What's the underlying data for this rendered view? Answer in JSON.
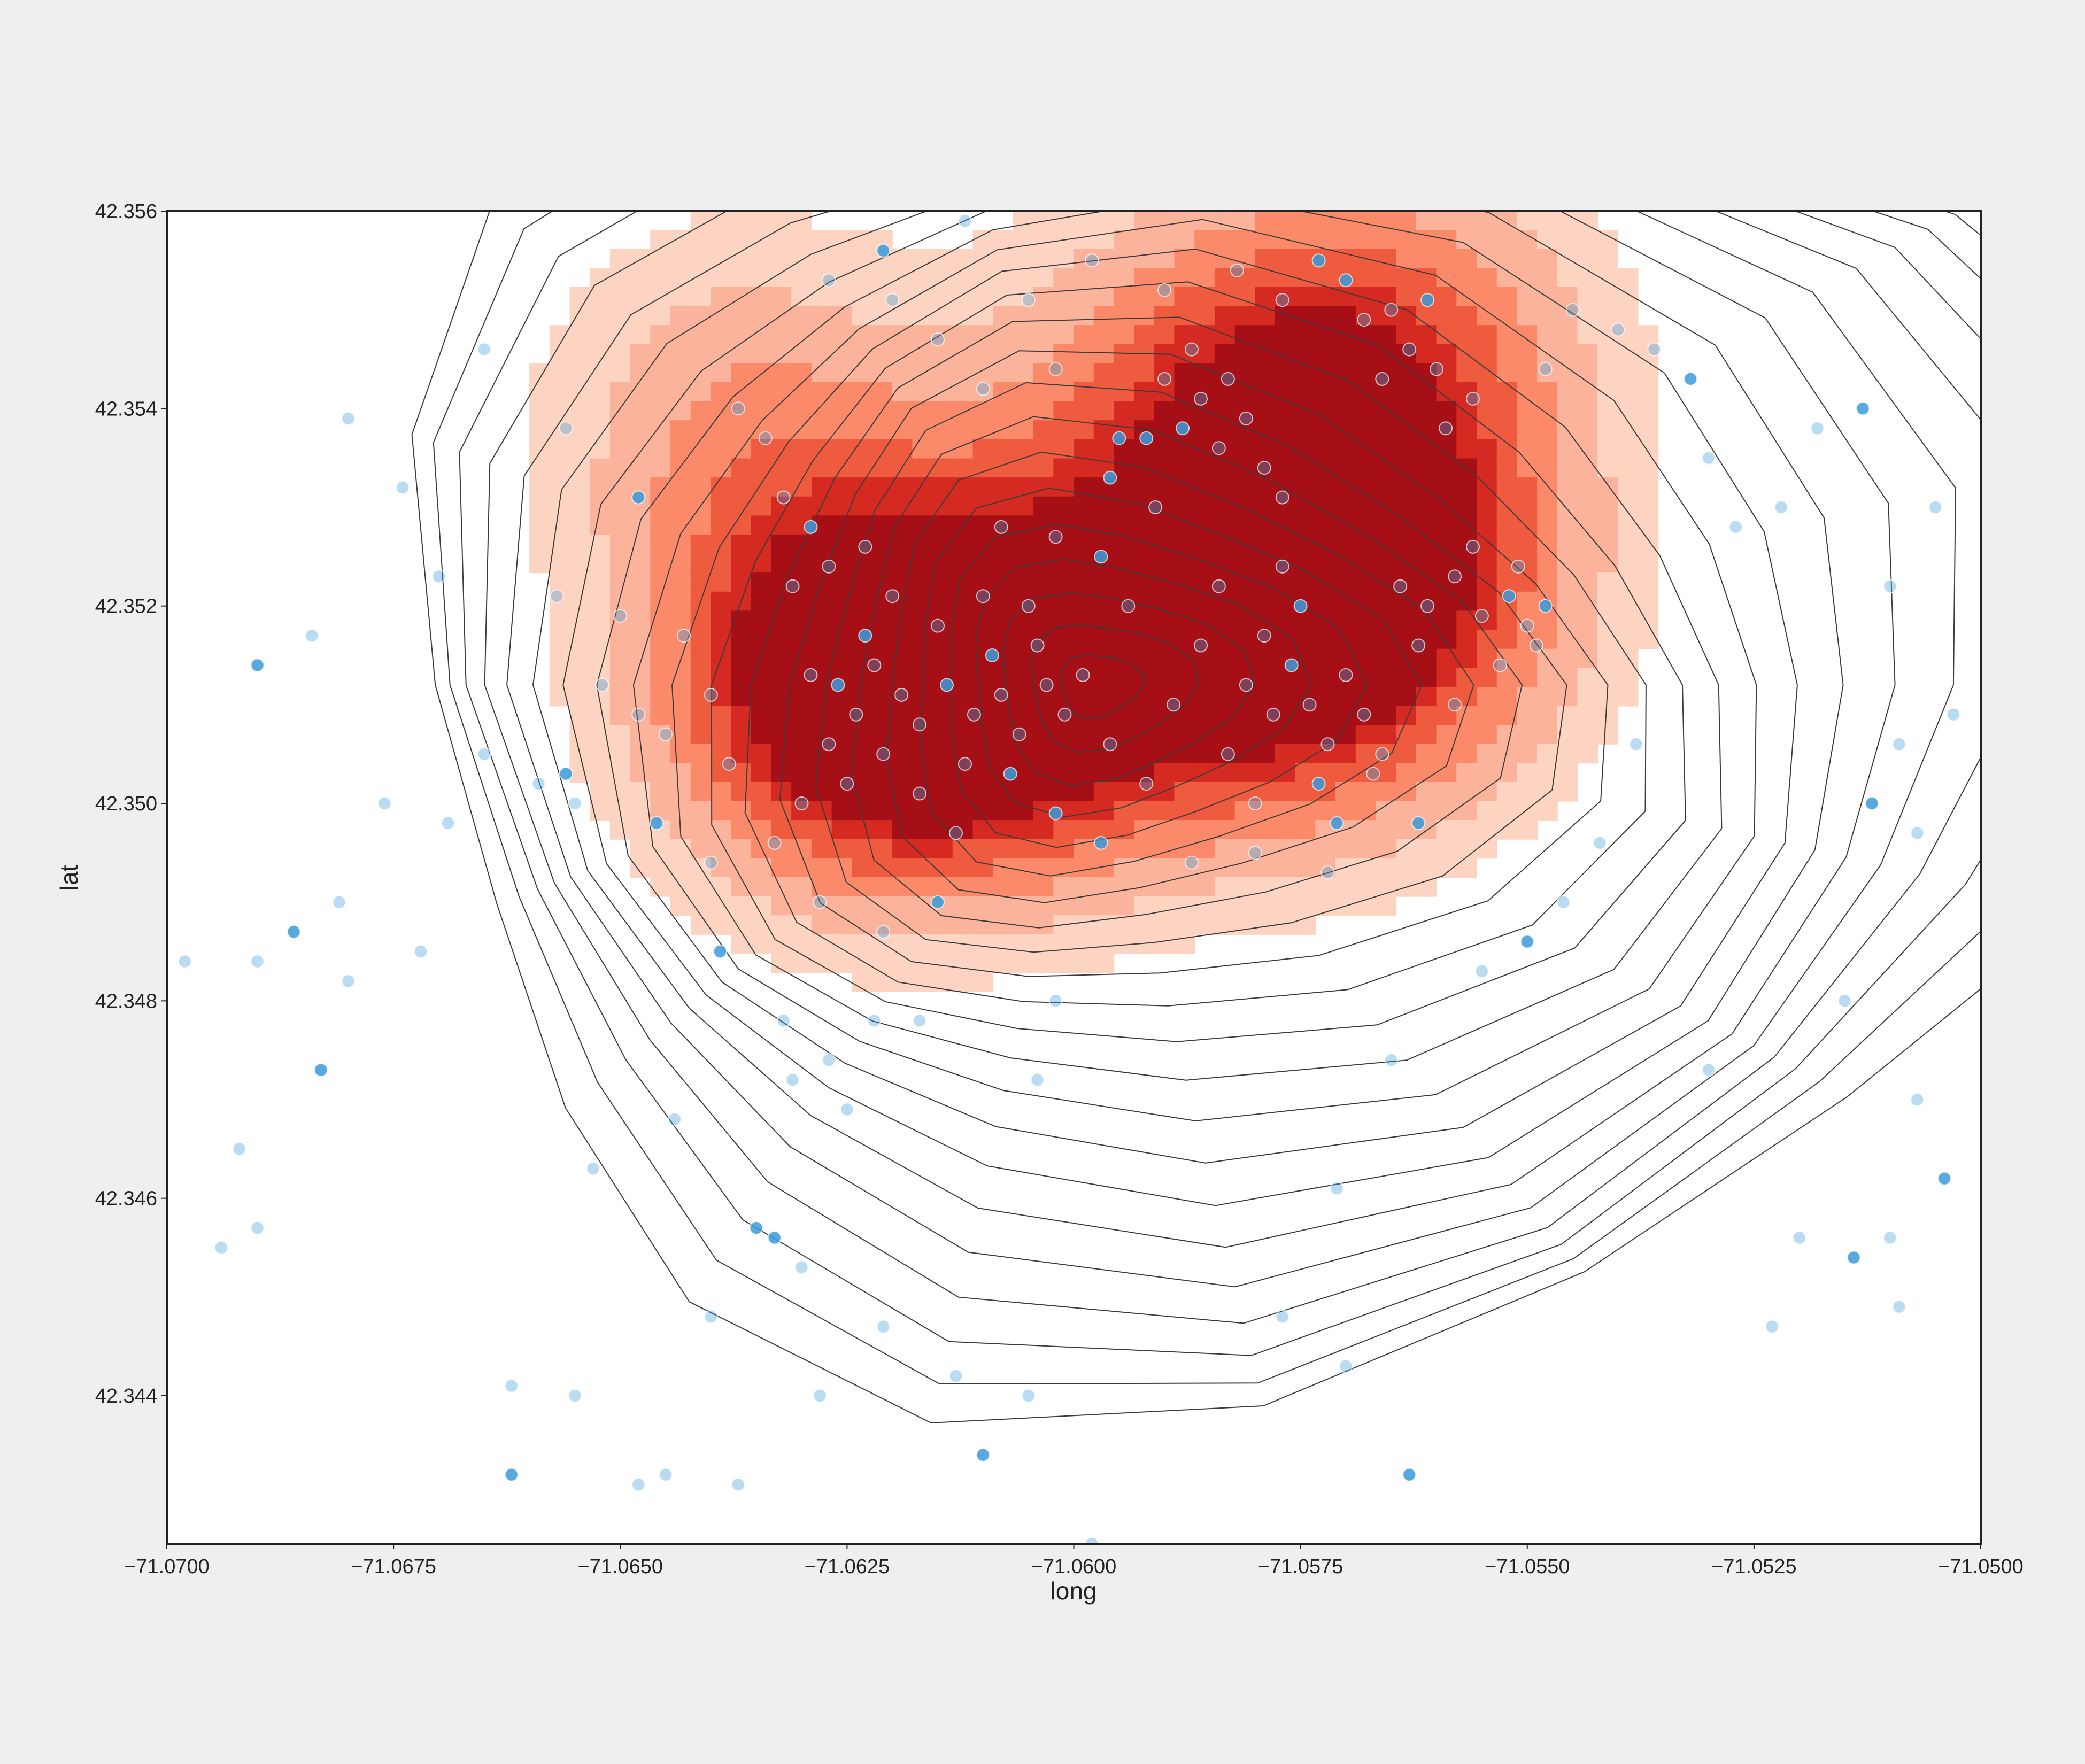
{
  "chart_data": {
    "type": "scatter",
    "title": "",
    "xlabel": "long",
    "ylabel": "lat",
    "xlim": [
      -71.07,
      -71.05
    ],
    "ylim": [
      42.3425,
      42.356
    ],
    "xticks": [
      -71.07,
      -71.0675,
      -71.065,
      -71.0625,
      -71.06,
      -71.0575,
      -71.055,
      -71.0525,
      -71.05
    ],
    "xtick_labels": [
      "−71.0700",
      "−71.0675",
      "−71.0650",
      "−71.0625",
      "−71.0600",
      "−71.0575",
      "−71.0550",
      "−71.0525",
      "−71.0500"
    ],
    "yticks": [
      42.344,
      42.346,
      42.348,
      42.35,
      42.352,
      42.354,
      42.356
    ],
    "ytick_labels": [
      "42.344",
      "42.346",
      "42.348",
      "42.350",
      "42.352",
      "42.354",
      "42.356"
    ],
    "grid": false,
    "layers": [
      "filled density contours (Reds)",
      "line density contours (black)",
      "scatter points (blue, semi-transparent)"
    ],
    "colors": {
      "points": "#3a9ad9",
      "point_edge": "#ffffff",
      "contour_line": "#3b3b3b",
      "density_fill_levels": [
        "#fdd4c2",
        "#fcb39b",
        "#fb8a6a",
        "#ef5b3f",
        "#d42a21",
        "#a50f15"
      ]
    },
    "density_centers": [
      {
        "x": -71.0625,
        "y": 42.3511,
        "amplitude": 1.0
      },
      {
        "x": -71.0607,
        "y": 42.3511,
        "amplitude": 0.75
      },
      {
        "x": -71.0577,
        "y": 42.3514,
        "amplitude": 0.7
      },
      {
        "x": -71.0563,
        "y": 42.3522,
        "amplitude": 0.6
      },
      {
        "x": -71.0585,
        "y": 42.3541,
        "amplitude": 0.65
      },
      {
        "x": -71.0563,
        "y": 42.3548,
        "amplitude": 0.55
      },
      {
        "x": -71.0637,
        "y": 42.354,
        "amplitude": 0.5
      }
    ],
    "points": [
      [
        -71.0626,
        42.3512
      ],
      [
        -71.0624,
        42.3509
      ],
      [
        -71.0622,
        42.3514
      ],
      [
        -71.0627,
        42.3506
      ],
      [
        -71.0619,
        42.3511
      ],
      [
        -71.0623,
        42.3517
      ],
      [
        -71.0629,
        42.3513
      ],
      [
        -71.0621,
        42.3505
      ],
      [
        -71.0617,
        42.3508
      ],
      [
        -71.0625,
        42.3502
      ],
      [
        -71.0614,
        42.3512
      ],
      [
        -71.0611,
        42.3509
      ],
      [
        -71.0608,
        42.3511
      ],
      [
        -71.0606,
        42.3507
      ],
      [
        -71.0603,
        42.3512
      ],
      [
        -71.0609,
        42.3515
      ],
      [
        -71.0612,
        42.3504
      ],
      [
        -71.0604,
        42.3516
      ],
      [
        -71.0615,
        42.3518
      ],
      [
        -71.0601,
        42.3509
      ],
      [
        -71.0607,
        42.3503
      ],
      [
        -71.0599,
        42.3513
      ],
      [
        -71.0605,
        42.352
      ],
      [
        -71.061,
        42.3521
      ],
      [
        -71.0617,
        42.3501
      ],
      [
        -71.0602,
        42.3499
      ],
      [
        -71.0596,
        42.3506
      ],
      [
        -71.0613,
        42.3497
      ],
      [
        -71.0581,
        42.3512
      ],
      [
        -71.0578,
        42.3509
      ],
      [
        -71.0576,
        42.3514
      ],
      [
        -71.0574,
        42.351
      ],
      [
        -71.0579,
        42.3517
      ],
      [
        -71.0572,
        42.3506
      ],
      [
        -71.0583,
        42.3505
      ],
      [
        -71.0575,
        42.352
      ],
      [
        -71.057,
        42.3513
      ],
      [
        -71.0586,
        42.3516
      ],
      [
        -71.0568,
        42.3509
      ],
      [
        -71.058,
        42.35
      ],
      [
        -71.0573,
        42.3502
      ],
      [
        -71.0584,
        42.3522
      ],
      [
        -71.0567,
        42.3503
      ],
      [
        -71.0589,
        42.351
      ],
      [
        -71.0577,
        42.3524
      ],
      [
        -71.0571,
        42.3498
      ],
      [
        -71.0564,
        42.3522
      ],
      [
        -71.0561,
        42.352
      ],
      [
        -71.0558,
        42.3523
      ],
      [
        -71.0555,
        42.3519
      ],
      [
        -71.0552,
        42.3521
      ],
      [
        -71.055,
        42.3518
      ],
      [
        -71.0551,
        42.3524
      ],
      [
        -71.0556,
        42.3526
      ],
      [
        -71.0562,
        42.3516
      ],
      [
        -71.0548,
        42.352
      ],
      [
        -71.0549,
        42.3516
      ],
      [
        -71.0553,
        42.3514
      ],
      [
        -71.0586,
        42.3541
      ],
      [
        -71.0583,
        42.3543
      ],
      [
        -71.0588,
        42.3538
      ],
      [
        -71.0581,
        42.3539
      ],
      [
        -71.059,
        42.3543
      ],
      [
        -71.0584,
        42.3536
      ],
      [
        -71.0579,
        42.3534
      ],
      [
        -71.0592,
        42.3537
      ],
      [
        -71.0587,
        42.3546
      ],
      [
        -71.0577,
        42.3531
      ],
      [
        -71.0565,
        42.355
      ],
      [
        -71.0563,
        42.3546
      ],
      [
        -71.0561,
        42.3551
      ],
      [
        -71.0568,
        42.3549
      ],
      [
        -71.056,
        42.3544
      ],
      [
        -71.0566,
        42.3543
      ],
      [
        -71.0559,
        42.3538
      ],
      [
        -71.057,
        42.3553
      ],
      [
        -71.0556,
        42.3541
      ],
      [
        -71.0637,
        42.354
      ],
      [
        -71.0634,
        42.3537
      ],
      [
        -71.0632,
        42.3531
      ],
      [
        -71.0629,
        42.3528
      ],
      [
        -71.0627,
        42.3524
      ],
      [
        -71.0623,
        42.3526
      ],
      [
        -71.062,
        42.3521
      ],
      [
        -71.0631,
        42.3522
      ],
      [
        -71.0597,
        42.3525
      ],
      [
        -71.0602,
        42.3527
      ],
      [
        -71.0594,
        42.352
      ],
      [
        -71.0608,
        42.3528
      ],
      [
        -71.0591,
        42.353
      ],
      [
        -71.0596,
        42.3533
      ],
      [
        -71.064,
        42.3511
      ],
      [
        -71.0645,
        42.3507
      ],
      [
        -71.0648,
        42.3509
      ],
      [
        -71.0652,
        42.3512
      ],
      [
        -71.0656,
        42.3503
      ],
      [
        -71.0659,
        42.3502
      ],
      [
        -71.0655,
        42.35
      ],
      [
        -71.0643,
        42.3517
      ],
      [
        -71.0638,
        42.3504
      ],
      [
        -71.0646,
        42.3498
      ],
      [
        -71.0633,
        42.3496
      ],
      [
        -71.063,
        42.35
      ],
      [
        -71.0628,
        42.349
      ],
      [
        -71.0621,
        42.3487
      ],
      [
        -71.0615,
        42.349
      ],
      [
        -71.064,
        42.3494
      ],
      [
        -71.0657,
        42.3521
      ],
      [
        -71.065,
        42.3519
      ],
      [
        -71.0592,
        42.3502
      ],
      [
        -71.0597,
        42.3496
      ],
      [
        -71.0587,
        42.3494
      ],
      [
        -71.058,
        42.3495
      ],
      [
        -71.0572,
        42.3493
      ],
      [
        -71.0566,
        42.3505
      ],
      [
        -71.0562,
        42.3498
      ],
      [
        -71.0558,
        42.351
      ],
      [
        -71.061,
        42.3542
      ],
      [
        -71.0615,
        42.3547
      ],
      [
        -71.0602,
        42.3544
      ],
      [
        -71.0595,
        42.3537
      ],
      [
        -71.062,
        42.3551
      ],
      [
        -71.0627,
        42.3553
      ],
      [
        -71.0605,
        42.3551
      ],
      [
        -71.0598,
        42.3555
      ],
      [
        -71.0621,
        42.3556
      ],
      [
        -71.0612,
        42.3559
      ],
      [
        -71.059,
        42.3552
      ],
      [
        -71.0582,
        42.3554
      ],
      [
        -71.0577,
        42.3551
      ],
      [
        -71.0573,
        42.3555
      ],
      [
        -71.0545,
        42.355
      ],
      [
        -71.0548,
        42.3544
      ],
      [
        -71.054,
        42.3548
      ],
      [
        -71.0536,
        42.3546
      ],
      [
        -71.0532,
        42.3543
      ],
      [
        -71.053,
        42.3535
      ],
      [
        -71.0527,
        42.3528
      ],
      [
        -71.0522,
        42.353
      ],
      [
        -71.0518,
        42.3538
      ],
      [
        -71.0513,
        42.354
      ],
      [
        -71.0505,
        42.353
      ],
      [
        -71.051,
        42.3522
      ],
      [
        -71.0503,
        42.3509
      ],
      [
        -71.0509,
        42.3506
      ],
      [
        -71.0512,
        42.35
      ],
      [
        -71.0507,
        42.3497
      ],
      [
        -71.0538,
        42.3506
      ],
      [
        -71.0542,
        42.3496
      ],
      [
        -71.0546,
        42.349
      ],
      [
        -71.055,
        42.3486
      ],
      [
        -71.0555,
        42.3483
      ],
      [
        -71.053,
        42.3473
      ],
      [
        -71.0515,
        42.348
      ],
      [
        -71.0507,
        42.347
      ],
      [
        -71.0504,
        42.3462
      ],
      [
        -71.051,
        42.3456
      ],
      [
        -71.052,
        42.3456
      ],
      [
        -71.0523,
        42.3447
      ],
      [
        -71.0509,
        42.3449
      ],
      [
        -71.0514,
        42.3454
      ],
      [
        -71.0565,
        42.3474
      ],
      [
        -71.0571,
        42.3461
      ],
      [
        -71.057,
        42.3443
      ],
      [
        -71.0577,
        42.3448
      ],
      [
        -71.0563,
        42.3432
      ],
      [
        -71.0665,
        42.3505
      ],
      [
        -71.0669,
        42.3498
      ],
      [
        -71.0676,
        42.35
      ],
      [
        -71.0681,
        42.349
      ],
      [
        -71.0686,
        42.3487
      ],
      [
        -71.0672,
        42.3485
      ],
      [
        -71.068,
        42.3482
      ],
      [
        -71.069,
        42.3484
      ],
      [
        -71.0698,
        42.3484
      ],
      [
        -71.069,
        42.3514
      ],
      [
        -71.067,
        42.3523
      ],
      [
        -71.0684,
        42.3517
      ],
      [
        -71.0674,
        42.3532
      ],
      [
        -71.0692,
        42.3465
      ],
      [
        -71.0683,
        42.3473
      ],
      [
        -71.0694,
        42.3455
      ],
      [
        -71.069,
        42.3457
      ],
      [
        -71.0653,
        42.3463
      ],
      [
        -71.064,
        42.3448
      ],
      [
        -71.0633,
        42.3456
      ],
      [
        -71.0645,
        42.3432
      ],
      [
        -71.0628,
        42.344
      ],
      [
        -71.0655,
        42.344
      ],
      [
        -71.0662,
        42.3441
      ],
      [
        -71.0662,
        42.3432
      ],
      [
        -71.0648,
        42.3431
      ],
      [
        -71.0637,
        42.3431
      ],
      [
        -71.0621,
        42.3447
      ],
      [
        -71.0613,
        42.3442
      ],
      [
        -71.061,
        42.3434
      ],
      [
        -71.0605,
        42.344
      ],
      [
        -71.0598,
        42.3425
      ],
      [
        -71.063,
        42.3453
      ],
      [
        -71.0604,
        42.3472
      ],
      [
        -71.0635,
        42.3457
      ],
      [
        -71.0602,
        42.348
      ],
      [
        -71.0617,
        42.3478
      ],
      [
        -71.0631,
        42.3472
      ],
      [
        -71.0644,
        42.3468
      ],
      [
        -71.0639,
        42.3485
      ],
      [
        -71.0627,
        42.3474
      ],
      [
        -71.0622,
        42.3478
      ],
      [
        -71.068,
        42.3539
      ],
      [
        -71.0656,
        42.3538
      ],
      [
        -71.0648,
        42.3531
      ],
      [
        -71.0665,
        42.3546
      ],
      [
        -71.0632,
        42.3478
      ],
      [
        -71.0625,
        42.3469
      ]
    ]
  }
}
